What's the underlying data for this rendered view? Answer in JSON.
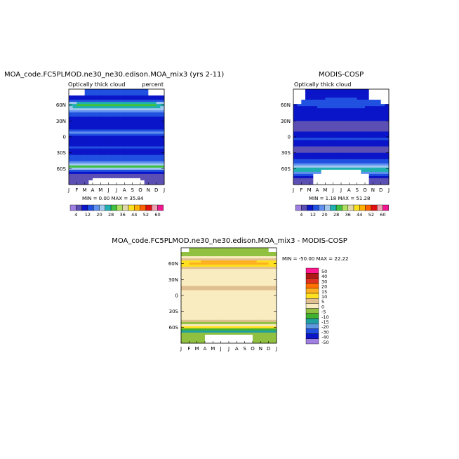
{
  "chart_data": [
    {
      "type": "heatmap",
      "title": "MOA_code.FC5PLMOD.ne30_ne30.edison.MOA_mix3 (yrs 2-11)",
      "subtitle_left": "Optically thick cloud",
      "subtitle_right": "percent",
      "x_ticks": [
        "J",
        "F",
        "M",
        "A",
        "M",
        "J",
        "J",
        "A",
        "S",
        "O",
        "N",
        "D",
        "J"
      ],
      "y_ticks": [
        "60N",
        "30N",
        "0",
        "30S",
        "60S"
      ],
      "stats": "MIN =   0.00 MAX =  35.84",
      "colorbar_labels": [
        "4",
        "12",
        "20",
        "28",
        "36",
        "44",
        "52",
        "60"
      ],
      "bands": [
        {
          "lat": 80,
          "value": 14,
          "amp": 0
        },
        {
          "lat": 70,
          "value": 8,
          "amp": 1
        },
        {
          "lat": 62,
          "value": 28,
          "amp": 6
        },
        {
          "lat": 52,
          "value": 20,
          "amp": 4
        },
        {
          "lat": 44,
          "value": 14,
          "amp": 2
        },
        {
          "lat": 38,
          "value": 12,
          "amp": 0
        },
        {
          "lat": 28,
          "value": 8,
          "amp": 0
        },
        {
          "lat": 16,
          "value": 10,
          "amp": 0
        },
        {
          "lat": 8,
          "value": 16,
          "amp": 2
        },
        {
          "lat": 2,
          "value": 12,
          "amp": 0
        },
        {
          "lat": -10,
          "value": 8,
          "amp": 0
        },
        {
          "lat": -20,
          "value": 12,
          "amp": 0
        },
        {
          "lat": -30,
          "value": 10,
          "amp": 0
        },
        {
          "lat": -42,
          "value": 14,
          "amp": 0
        },
        {
          "lat": -50,
          "value": 20,
          "amp": 0
        },
        {
          "lat": -56,
          "value": 28,
          "amp": 0
        },
        {
          "lat": -64,
          "value": 14,
          "amp": 0
        },
        {
          "lat": -74,
          "value": 6,
          "amp": 0
        }
      ]
    },
    {
      "type": "heatmap",
      "title": "MODIS-COSP",
      "subtitle_left": "Optically thick cloud",
      "x_ticks": [
        "J",
        "F",
        "M",
        "A",
        "M",
        "J",
        "J",
        "A",
        "S",
        "O",
        "N",
        "D",
        "J"
      ],
      "y_ticks": [
        "60N",
        "30N",
        "0",
        "30S",
        "60S"
      ],
      "stats": "MIN =   1.18 MAX =  51.28",
      "colorbar_labels": [
        "4",
        "12",
        "20",
        "28",
        "36",
        "44",
        "52",
        "60"
      ],
      "bands": [
        {
          "lat": 78,
          "value": 10,
          "amp": 0
        },
        {
          "lat": 62,
          "value": 12,
          "amp": 4
        },
        {
          "lat": 48,
          "value": 8,
          "amp": 0
        },
        {
          "lat": 38,
          "value": 12,
          "amp": 0
        },
        {
          "lat": 28,
          "value": 6,
          "amp": 0
        },
        {
          "lat": 18,
          "value": 4,
          "amp": 0
        },
        {
          "lat": 8,
          "value": 8,
          "amp": 0
        },
        {
          "lat": -4,
          "value": 12,
          "amp": 0
        },
        {
          "lat": -16,
          "value": 8,
          "amp": 0
        },
        {
          "lat": -22,
          "value": 4,
          "amp": 0
        },
        {
          "lat": -32,
          "value": 8,
          "amp": 0
        },
        {
          "lat": -44,
          "value": 12,
          "amp": 0
        },
        {
          "lat": -54,
          "value": 18,
          "amp": 0
        },
        {
          "lat": -62,
          "value": 28,
          "amp": 0
        },
        {
          "lat": -70,
          "value": 14,
          "amp": 0
        },
        {
          "lat": -80,
          "value": 6,
          "amp": 0
        }
      ]
    },
    {
      "type": "heatmap",
      "title": "MOA_code.FC5PLMOD.ne30_ne30.edison.MOA_mix3 - MODIS-COSP",
      "x_ticks": [
        "J",
        "F",
        "M",
        "A",
        "M",
        "J",
        "J",
        "A",
        "S",
        "O",
        "N",
        "D",
        "J"
      ],
      "y_ticks": [
        "60N",
        "30N",
        "0",
        "30S",
        "60S"
      ],
      "stats": "MIN = -50.00 MAX =  22.22",
      "colorbar_labels": [
        "50",
        "40",
        "30",
        "20",
        "15",
        "10",
        "5",
        "0",
        "-5",
        "-10",
        "-15",
        "-20",
        "-30",
        "-40",
        "-50"
      ],
      "bands": [
        {
          "lat": 78,
          "value": -5,
          "amp": 0
        },
        {
          "lat": 68,
          "value": 5,
          "amp": 0
        },
        {
          "lat": 62,
          "value": 15,
          "amp": 8
        },
        {
          "lat": 54,
          "value": 10,
          "amp": 0
        },
        {
          "lat": 46,
          "value": 2,
          "amp": 0
        },
        {
          "lat": 36,
          "value": 4,
          "amp": 0
        },
        {
          "lat": 24,
          "value": 2,
          "amp": 0
        },
        {
          "lat": 14,
          "value": 6,
          "amp": 0
        },
        {
          "lat": 2,
          "value": 2,
          "amp": 0
        },
        {
          "lat": -14,
          "value": 2,
          "amp": 0
        },
        {
          "lat": -26,
          "value": 4,
          "amp": 0
        },
        {
          "lat": -38,
          "value": 2,
          "amp": 0
        },
        {
          "lat": -48,
          "value": 5,
          "amp": 0
        },
        {
          "lat": -54,
          "value": -5,
          "amp": 0
        },
        {
          "lat": -60,
          "value": 10,
          "amp": 0
        },
        {
          "lat": -66,
          "value": -15,
          "amp": 0
        },
        {
          "lat": -72,
          "value": -5,
          "amp": 0
        },
        {
          "lat": -80,
          "value": -5,
          "amp": 0
        }
      ]
    }
  ],
  "colors": {
    "seq": [
      "#9f80e0",
      "#5b4fb4",
      "#0a14c8",
      "#2050e0",
      "#6090f0",
      "#a0c8f0",
      "#20b0b0",
      "#40c040",
      "#b0e060",
      "#e0d8a8",
      "#f8e020",
      "#ffb000",
      "#ff6000",
      "#e01010",
      "#f0a0b0",
      "#f01890"
    ],
    "div": [
      "#ff1890",
      "#b01818",
      "#e03020",
      "#ff7000",
      "#ffb020",
      "#ffe020",
      "#e0c090",
      "#f8ecc0",
      "#90c040",
      "#40b030",
      "#20a0a0",
      "#6098e0",
      "#2050e0",
      "#0a14c8",
      "#9f80e0"
    ],
    "missing": "#ffffff"
  }
}
